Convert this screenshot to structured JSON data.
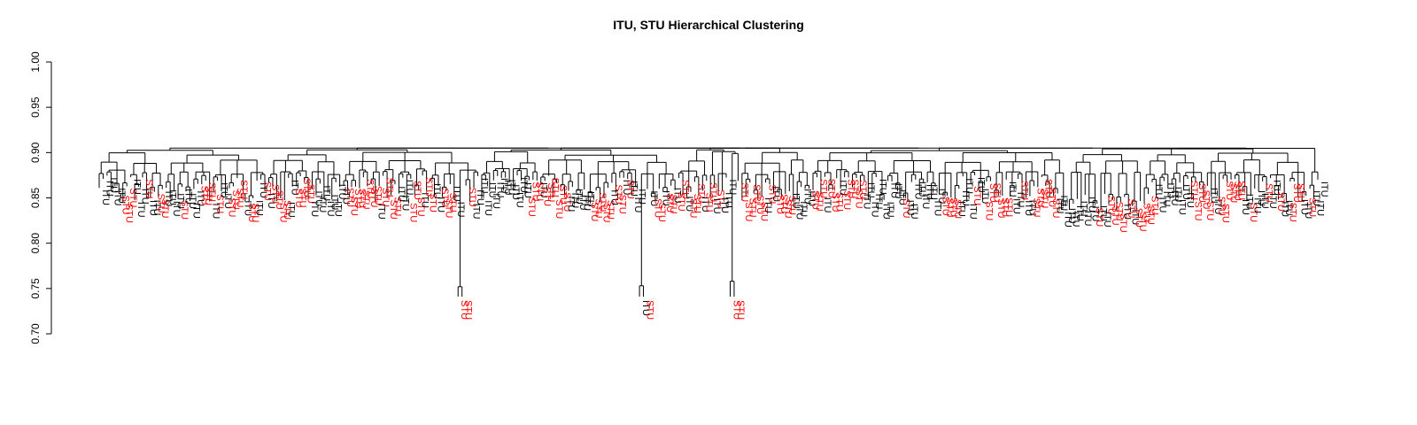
{
  "chart_data": {
    "type": "dendrogram",
    "title": "ITU, STU Hierarchical Clustering",
    "xlabel": "",
    "ylabel": "",
    "ylim": [
      0.7,
      1.0
    ],
    "y_ticks": [
      "0.70",
      "0.75",
      "0.80",
      "0.85",
      "0.90",
      "0.95",
      "1.00"
    ],
    "grid": false,
    "label_colors": {
      "ITU": "#000000",
      "STU": "#ff0000"
    },
    "leaf_count": 310,
    "root_height": 0.905,
    "leaf_heights_sample": [
      0.87,
      0.865,
      0.86,
      0.855,
      0.85,
      0.845,
      0.84
    ],
    "notable_branches": [
      {
        "labels": [
          "STU",
          "STU"
        ],
        "merge_height": 0.752,
        "join_height": 0.875
      },
      {
        "labels": [
          "ITU",
          "STU"
        ],
        "merge_height": 0.753,
        "join_height": 0.87
      },
      {
        "labels": [
          "STU",
          "STU"
        ],
        "merge_height": 0.758,
        "join_height": 0.897
      }
    ]
  }
}
